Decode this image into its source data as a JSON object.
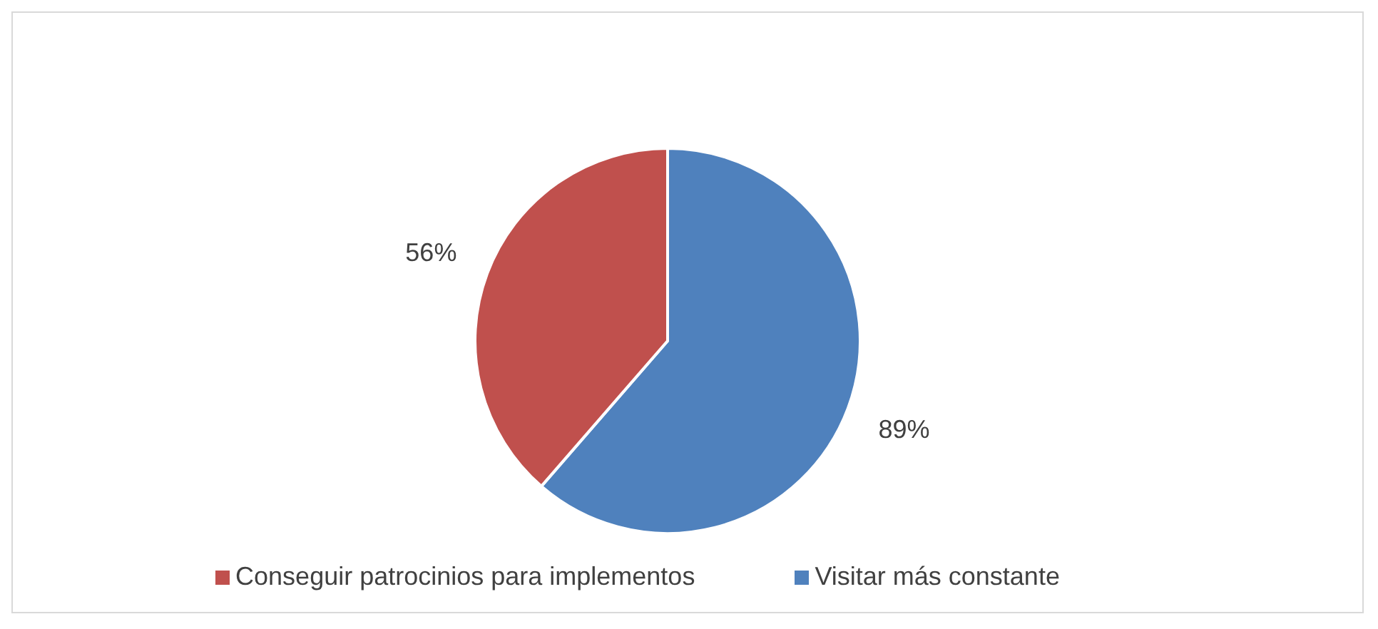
{
  "chart_data": {
    "type": "pie",
    "categories": [
      "Visitar más constante",
      "Conseguir patrocinios para implementos"
    ],
    "values": [
      89,
      56
    ],
    "value_labels": [
      "89%",
      "56%"
    ],
    "colors": [
      "#4f81bd",
      "#c0504d"
    ],
    "legend": "bottom"
  }
}
